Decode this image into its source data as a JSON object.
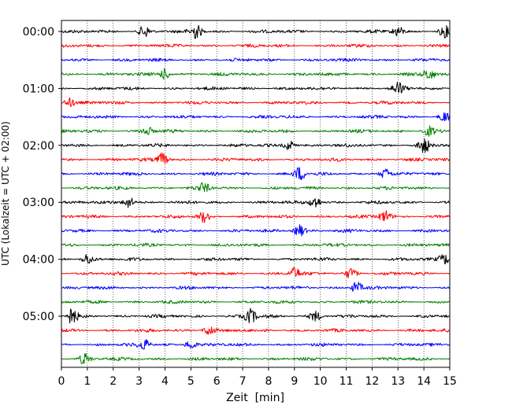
{
  "chart_data": {
    "type": "line",
    "subtype": "helicorder / seismogram drum plot",
    "xlabel": "Zeit  [min]",
    "ylabel": "UTC (Lokalzeit = UTC + 02:00)",
    "xlim": [
      0,
      15
    ],
    "x_ticks": [
      "0",
      "1",
      "2",
      "3",
      "4",
      "5",
      "6",
      "7",
      "8",
      "9",
      "10",
      "11",
      "12",
      "13",
      "14",
      "15"
    ],
    "y_tick_labels": [
      "00:00",
      "01:00",
      "02:00",
      "03:00",
      "04:00",
      "05:00"
    ],
    "traces_per_hour": 4,
    "minutes_per_trace": 15,
    "trace_count": 24,
    "trace_color_cycle": [
      "#000000",
      "#ff0000",
      "#0000ff",
      "#008000"
    ],
    "vertical_gridlines": "dotted at each minute",
    "events": [
      {
        "trace": 0,
        "minute": 3.2,
        "amp": 1.6
      },
      {
        "trace": 0,
        "minute": 5.2,
        "amp": 2.0
      },
      {
        "trace": 0,
        "minute": 13.0,
        "amp": 1.4
      },
      {
        "trace": 0,
        "minute": 14.8,
        "amp": 1.5
      },
      {
        "trace": 3,
        "minute": 4.0,
        "amp": 1.5
      },
      {
        "trace": 3,
        "minute": 14.2,
        "amp": 1.5
      },
      {
        "trace": 4,
        "minute": 13.0,
        "amp": 1.6
      },
      {
        "trace": 5,
        "minute": 0.3,
        "amp": 1.3
      },
      {
        "trace": 6,
        "minute": 14.8,
        "amp": 1.3
      },
      {
        "trace": 7,
        "minute": 3.3,
        "amp": 1.3
      },
      {
        "trace": 7,
        "minute": 14.2,
        "amp": 1.3
      },
      {
        "trace": 8,
        "minute": 8.8,
        "amp": 1.4
      },
      {
        "trace": 8,
        "minute": 14.0,
        "amp": 2.0
      },
      {
        "trace": 9,
        "minute": 3.9,
        "amp": 1.8
      },
      {
        "trace": 10,
        "minute": 9.2,
        "amp": 1.9
      },
      {
        "trace": 10,
        "minute": 12.5,
        "amp": 1.4
      },
      {
        "trace": 11,
        "minute": 5.5,
        "amp": 1.3
      },
      {
        "trace": 12,
        "minute": 2.6,
        "amp": 1.6
      },
      {
        "trace": 12,
        "minute": 9.8,
        "amp": 1.7
      },
      {
        "trace": 13,
        "minute": 5.5,
        "amp": 1.5
      },
      {
        "trace": 13,
        "minute": 12.5,
        "amp": 1.6
      },
      {
        "trace": 14,
        "minute": 9.2,
        "amp": 1.8
      },
      {
        "trace": 16,
        "minute": 1.0,
        "amp": 1.5
      },
      {
        "trace": 16,
        "minute": 14.8,
        "amp": 1.4
      },
      {
        "trace": 17,
        "minute": 9.0,
        "amp": 1.6
      },
      {
        "trace": 17,
        "minute": 11.2,
        "amp": 1.5
      },
      {
        "trace": 18,
        "minute": 11.4,
        "amp": 1.6
      },
      {
        "trace": 20,
        "minute": 0.4,
        "amp": 2.2
      },
      {
        "trace": 20,
        "minute": 7.3,
        "amp": 2.0
      },
      {
        "trace": 20,
        "minute": 9.8,
        "amp": 1.4
      },
      {
        "trace": 21,
        "minute": 5.7,
        "amp": 1.5
      },
      {
        "trace": 22,
        "minute": 3.2,
        "amp": 1.4
      },
      {
        "trace": 22,
        "minute": 5.0,
        "amp": 1.4
      },
      {
        "trace": 23,
        "minute": 0.9,
        "amp": 1.5
      }
    ]
  }
}
